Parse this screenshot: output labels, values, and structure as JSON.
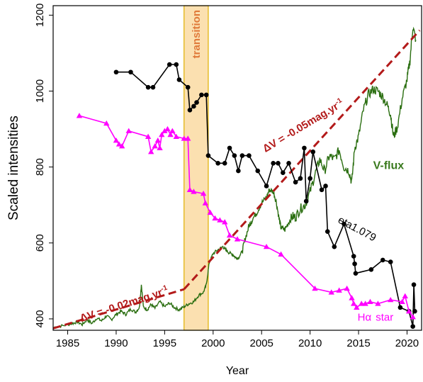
{
  "chart_data": {
    "type": "line",
    "title": "",
    "xlabel": "Year",
    "ylabel": "Scaled intensities",
    "xlim": [
      1983.5,
      2021.5
    ],
    "ylim": [
      370,
      1225
    ],
    "xticks": [
      1985,
      1990,
      1995,
      2000,
      2005,
      2010,
      2015,
      2020
    ],
    "yticks": [
      400,
      600,
      800,
      1000,
      1200
    ],
    "grid": false,
    "shaded_region": {
      "x": [
        1997.0,
        1999.5
      ],
      "label": "transition",
      "fill": "#fbe0b0",
      "stroke": "#e0b000"
    },
    "series": [
      {
        "name": "eta1.079",
        "color": "#000000",
        "marker": "circle",
        "x": [
          1990.0,
          1991.5,
          1993.3,
          1993.8,
          1995.5,
          1996.2,
          1996.5,
          1997.4,
          1997.6,
          1998.0,
          1998.3,
          1998.8,
          1999.3,
          1999.5,
          2000.5,
          2001.2,
          2001.7,
          2002.2,
          2002.6,
          2003.0,
          2003.7,
          2004.6,
          2005.5,
          2006.2,
          2006.7,
          2007.2,
          2007.8,
          2008.5,
          2009.0,
          2009.4,
          2009.6,
          2010.0,
          2010.3,
          2011.2,
          2011.6,
          2011.8,
          2012.5,
          2013.5,
          2014.5,
          2014.6,
          2014.7,
          2016.3,
          2017.5,
          2018.3,
          2019.3,
          2020.2,
          2020.6,
          2020.7,
          2020.8
        ],
        "y": [
          1050,
          1050,
          1010,
          1010,
          1070,
          1070,
          1030,
          1010,
          950,
          960,
          970,
          990,
          990,
          830,
          810,
          810,
          850,
          830,
          790,
          830,
          830,
          790,
          750,
          810,
          810,
          785,
          810,
          760,
          770,
          850,
          710,
          770,
          840,
          740,
          750,
          630,
          590,
          650,
          565,
          545,
          520,
          530,
          555,
          550,
          430,
          420,
          380,
          490,
          420
        ]
      },
      {
        "name": "Hα star",
        "color": "#ff00ff",
        "marker": "triangle",
        "x": [
          1986.2,
          1989.0,
          1990.0,
          1990.3,
          1990.6,
          1991.3,
          1993.3,
          1993.6,
          1994.0,
          1994.3,
          1994.5,
          1994.7,
          1995.0,
          1995.3,
          1995.6,
          1995.8,
          1996.2,
          1997.0,
          1997.4,
          1997.6,
          1998.0,
          1999.0,
          1999.2,
          1999.7,
          2000.2,
          2000.7,
          2001.2,
          2001.7,
          2002.5,
          2005.5,
          2007.0,
          2010.5,
          2012.2,
          2013.0,
          2013.8,
          2014.3,
          2014.5,
          2014.8,
          2015.3,
          2015.7,
          2016.2,
          2017.0,
          2018.3,
          2019.5,
          2019.8,
          2020.2,
          2020.6
        ],
        "y": [
          935,
          915,
          870,
          860,
          855,
          895,
          880,
          840,
          855,
          870,
          850,
          885,
          895,
          900,
          885,
          895,
          880,
          875,
          875,
          740,
          735,
          730,
          705,
          680,
          665,
          660,
          655,
          620,
          610,
          590,
          570,
          480,
          470,
          475,
          480,
          455,
          440,
          430,
          440,
          440,
          445,
          440,
          450,
          445,
          460,
          420,
          405
        ]
      }
    ],
    "v_flux": {
      "name": "V-flux",
      "color": "#2a6e10",
      "knots": [
        [
          1983.6,
          378
        ],
        [
          1984.5,
          382
        ],
        [
          1985.5,
          388
        ],
        [
          1986.0,
          392
        ],
        [
          1986.5,
          385
        ],
        [
          1987.0,
          398
        ],
        [
          1987.5,
          388
        ],
        [
          1988.0,
          402
        ],
        [
          1988.5,
          395
        ],
        [
          1989.0,
          408
        ],
        [
          1989.5,
          398
        ],
        [
          1990.0,
          412
        ],
        [
          1990.5,
          420
        ],
        [
          1991.0,
          412
        ],
        [
          1991.5,
          426
        ],
        [
          1992.0,
          418
        ],
        [
          1992.4,
          430
        ],
        [
          1992.6,
          490
        ],
        [
          1992.8,
          432
        ],
        [
          1993.2,
          424
        ],
        [
          1993.6,
          438
        ],
        [
          1994.0,
          428
        ],
        [
          1994.5,
          445
        ],
        [
          1995.0,
          432
        ],
        [
          1995.5,
          442
        ],
        [
          1996.0,
          430
        ],
        [
          1996.5,
          424
        ],
        [
          1997.0,
          432
        ],
        [
          1997.5,
          440
        ],
        [
          1998.0,
          445
        ],
        [
          1998.5,
          462
        ],
        [
          1999.0,
          470
        ],
        [
          1999.3,
          490
        ],
        [
          1999.6,
          548
        ],
        [
          2000.0,
          572
        ],
        [
          2000.5,
          582
        ],
        [
          2001.0,
          590
        ],
        [
          2001.3,
          582
        ],
        [
          2001.6,
          575
        ],
        [
          2002.0,
          570
        ],
        [
          2002.3,
          562
        ],
        [
          2002.6,
          560
        ],
        [
          2003.0,
          578
        ],
        [
          2003.3,
          610
        ],
        [
          2003.7,
          645
        ],
        [
          2004.0,
          660
        ],
        [
          2004.5,
          680
        ],
        [
          2005.0,
          705
        ],
        [
          2005.5,
          720
        ],
        [
          2005.8,
          740
        ],
        [
          2006.2,
          735
        ],
        [
          2006.5,
          710
        ],
        [
          2006.8,
          665
        ],
        [
          2007.0,
          640
        ],
        [
          2007.4,
          635
        ],
        [
          2007.8,
          655
        ],
        [
          2008.2,
          670
        ],
        [
          2008.5,
          668
        ],
        [
          2009.0,
          690
        ],
        [
          2009.5,
          700
        ],
        [
          2010.0,
          735
        ],
        [
          2010.5,
          780
        ],
        [
          2011.0,
          820
        ],
        [
          2011.5,
          790
        ],
        [
          2012.0,
          830
        ],
        [
          2012.5,
          820
        ],
        [
          2013.0,
          845
        ],
        [
          2013.5,
          800
        ],
        [
          2014.0,
          790
        ],
        [
          2014.3,
          760
        ],
        [
          2014.6,
          850
        ],
        [
          2015.0,
          880
        ],
        [
          2015.5,
          950
        ],
        [
          2016.0,
          990
        ],
        [
          2016.5,
          1005
        ],
        [
          2017.0,
          1000
        ],
        [
          2017.5,
          985
        ],
        [
          2018.0,
          960
        ],
        [
          2018.3,
          940
        ],
        [
          2018.6,
          880
        ],
        [
          2019.0,
          905
        ],
        [
          2019.5,
          980
        ],
        [
          2020.0,
          1030
        ],
        [
          2020.3,
          1080
        ],
        [
          2020.6,
          1170
        ],
        [
          2020.9,
          1135
        ]
      ]
    },
    "trend_lines": [
      {
        "label": "ΔV = -0.02mag.yr",
        "sup": "-1",
        "color": "#b31a1a",
        "x": [
          1983.5,
          1997.0
        ],
        "y": [
          375,
          478
        ]
      },
      {
        "label": "ΔV = -0.05mag.yr",
        "sup": "-1",
        "color": "#b31a1a",
        "x": [
          1997.0,
          2021.3
        ],
        "y": [
          478,
          1160
        ]
      }
    ],
    "annotations": {
      "transition": "transition",
      "eta": "eta1.079",
      "vflux": "V-flux",
      "halpha_prefix": "Hα",
      "halpha_suffix": "star"
    }
  }
}
